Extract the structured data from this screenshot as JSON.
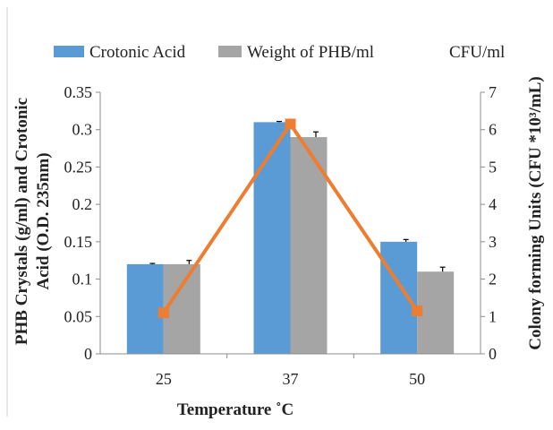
{
  "chart_data": {
    "type": "bar",
    "title": "",
    "xlabel": "Temperature ˚C",
    "ylabel": "PHB Crystals (g/ml) and Crotonic Acid (O.D. 235nm)",
    "ylabel_line1": "PHB Crystals (g/ml) and Crotonic",
    "ylabel_line2": "Acid (O.D. 235nm)",
    "y2label": "Colony forming Units (CFU *10³/mL)",
    "categories": [
      "25",
      "37",
      "50"
    ],
    "ylim": [
      0,
      0.35
    ],
    "y_ticks": [
      "0",
      "0.05",
      "0.1",
      "0.15",
      "0.2",
      "0.25",
      "0.3",
      "0.35"
    ],
    "y2lim": [
      0,
      7
    ],
    "y2_ticks": [
      "0",
      "1",
      "2",
      "3",
      "4",
      "5",
      "6",
      "7"
    ],
    "grid": false,
    "legend_position": "top",
    "series": [
      {
        "name": "Crotonic Acid",
        "kind": "bar",
        "axis": "left",
        "color": "#5b9bd5",
        "values": [
          0.12,
          0.31,
          0.15
        ],
        "errors": [
          0.001,
          0.001,
          0.003
        ]
      },
      {
        "name": "Weight of PHB/ml",
        "kind": "bar",
        "axis": "left",
        "color": "#a5a5a5",
        "values": [
          0.12,
          0.29,
          0.11
        ],
        "errors": [
          0.005,
          0.007,
          0.006
        ]
      },
      {
        "name": "CFU/ml",
        "kind": "line",
        "axis": "right",
        "color": "#ed7d31",
        "values": [
          1.1,
          6.15,
          1.15
        ]
      }
    ]
  }
}
